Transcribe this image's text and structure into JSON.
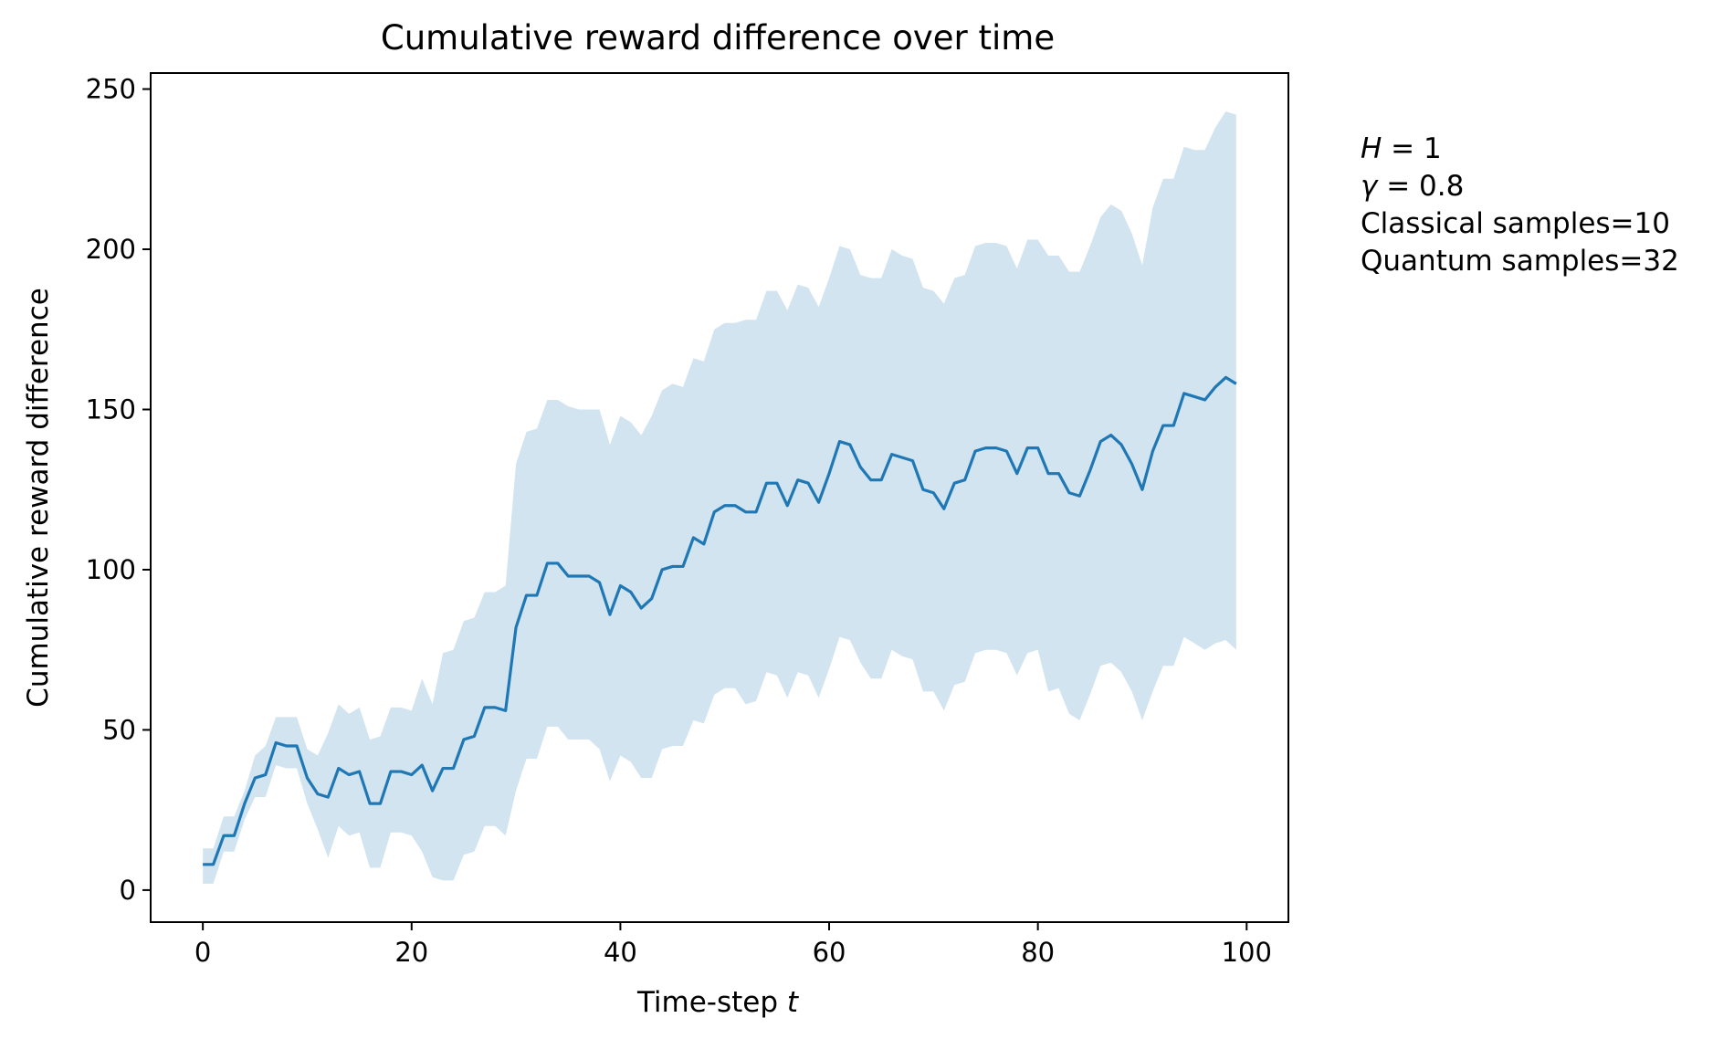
{
  "chart_data": {
    "type": "line",
    "title": "Cumulative reward difference over time",
    "xlabel": "Time-step",
    "xlabel_var": "t",
    "ylabel": "Cumulative reward difference",
    "xlim": [
      -5,
      104
    ],
    "ylim": [
      -10,
      255
    ],
    "x_ticks": [
      0,
      20,
      40,
      60,
      80,
      100
    ],
    "y_ticks": [
      0,
      50,
      100,
      150,
      200,
      250
    ],
    "grid": false,
    "colors": {
      "line": "#1f77b4",
      "band": "#1f77b4",
      "band_opacity": 0.2
    },
    "annotations": [
      {
        "var": "H",
        "value": "1"
      },
      {
        "var": "γ",
        "value": "0.8"
      },
      {
        "text": "Classical samples=10"
      },
      {
        "text": "Quantum samples=32"
      }
    ],
    "series": [
      {
        "mean": [
          8,
          8,
          17,
          17,
          27,
          35,
          36,
          46,
          45,
          45,
          35,
          30,
          29,
          38,
          36,
          37,
          27,
          27,
          37,
          37,
          36,
          39,
          31,
          38,
          38,
          47,
          48,
          57,
          57,
          56,
          82,
          92,
          92,
          102,
          102,
          98,
          98,
          98,
          96,
          86,
          95,
          93,
          88,
          91,
          100,
          101,
          101,
          110,
          108,
          118,
          120,
          120,
          118,
          118,
          127,
          127,
          120,
          128,
          127,
          121,
          130,
          140,
          139,
          132,
          128,
          128,
          136,
          135,
          134,
          125,
          124,
          119,
          127,
          128,
          137,
          138,
          138,
          137,
          130,
          138,
          138,
          130,
          130,
          124,
          123,
          131,
          140,
          142,
          139,
          133,
          125,
          137,
          145,
          145,
          155,
          154,
          153,
          157,
          160,
          158
        ],
        "upper": [
          13,
          13,
          23,
          23,
          31,
          42,
          45,
          54,
          54,
          54,
          44,
          42,
          49,
          58,
          55,
          57,
          47,
          48,
          57,
          57,
          56,
          66,
          58,
          74,
          75,
          84,
          85,
          93,
          93,
          95,
          133,
          143,
          144,
          153,
          153,
          151,
          150,
          150,
          150,
          139,
          148,
          146,
          142,
          148,
          156,
          158,
          157,
          166,
          165,
          175,
          177,
          177,
          178,
          178,
          187,
          187,
          181,
          189,
          188,
          182,
          191,
          201,
          200,
          192,
          191,
          191,
          200,
          198,
          197,
          188,
          187,
          183,
          191,
          192,
          201,
          202,
          202,
          201,
          194,
          203,
          203,
          198,
          198,
          193,
          193,
          201,
          210,
          214,
          212,
          205,
          195,
          213,
          222,
          222,
          232,
          231,
          231,
          238,
          243,
          242
        ],
        "lower": [
          2,
          2,
          12,
          12,
          22,
          29,
          29,
          39,
          38,
          38,
          27,
          19,
          10,
          20,
          17,
          18,
          7,
          7,
          18,
          18,
          17,
          12,
          4,
          3,
          3,
          11,
          12,
          20,
          20,
          17,
          31,
          41,
          41,
          51,
          51,
          47,
          47,
          47,
          44,
          34,
          42,
          40,
          35,
          35,
          44,
          45,
          45,
          53,
          52,
          61,
          63,
          63,
          58,
          59,
          68,
          67,
          60,
          68,
          67,
          60,
          69,
          79,
          78,
          71,
          66,
          66,
          75,
          73,
          72,
          62,
          62,
          56,
          64,
          65,
          74,
          75,
          75,
          74,
          67,
          74,
          75,
          62,
          63,
          55,
          53,
          61,
          70,
          71,
          68,
          62,
          53,
          62,
          70,
          70,
          79,
          77,
          75,
          77,
          78,
          75
        ]
      }
    ]
  }
}
